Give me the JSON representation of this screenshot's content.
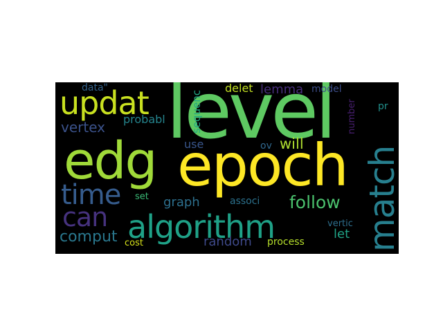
{
  "wordcloud": {
    "words": [
      {
        "text": "level",
        "color": "#5ec962",
        "orientation": "horizontal"
      },
      {
        "text": "epoch",
        "color": "#fde725",
        "orientation": "horizontal"
      },
      {
        "text": "edg",
        "color": "#a0da39",
        "orientation": "horizontal"
      },
      {
        "text": "algorithm",
        "color": "#1fa187",
        "orientation": "horizontal"
      },
      {
        "text": "match",
        "color": "#277f8e",
        "orientation": "vertical"
      },
      {
        "text": "updat",
        "color": "#c8e020",
        "orientation": "horizontal"
      },
      {
        "text": "time",
        "color": "#365c8d",
        "orientation": "horizontal"
      },
      {
        "text": "can",
        "color": "#46327e",
        "orientation": "horizontal"
      },
      {
        "text": "follow",
        "color": "#4ac16d",
        "orientation": "horizontal"
      },
      {
        "text": "comput",
        "color": "#2a788e",
        "orientation": "horizontal"
      },
      {
        "text": "vertex",
        "color": "#3b528b",
        "orientation": "horizontal"
      },
      {
        "text": "random",
        "color": "#3e4989",
        "orientation": "horizontal"
      },
      {
        "text": "will",
        "color": "#addc30",
        "orientation": "horizontal"
      },
      {
        "text": "lemma",
        "color": "#472d7b",
        "orientation": "horizontal"
      },
      {
        "text": "delet",
        "color": "#c2df23",
        "orientation": "horizontal"
      },
      {
        "text": "graph",
        "color": "#2d708e",
        "orientation": "horizontal"
      },
      {
        "text": "use",
        "color": "#39568c",
        "orientation": "horizontal"
      },
      {
        "text": "let",
        "color": "#20a386",
        "orientation": "horizontal"
      },
      {
        "text": "probabl",
        "color": "#25858e",
        "orientation": "horizontal"
      },
      {
        "text": "sequenc",
        "color": "#22a884",
        "orientation": "vertical"
      },
      {
        "text": "number",
        "color": "#481f70",
        "orientation": "vertical"
      },
      {
        "text": "model",
        "color": "#3d4e8a",
        "orientation": "horizontal"
      },
      {
        "text": "data\"",
        "color": "#33638d",
        "orientation": "horizontal"
      },
      {
        "text": "pr",
        "color": "#21918c",
        "orientation": "horizontal"
      },
      {
        "text": "ov",
        "color": "#31688e",
        "orientation": "horizontal"
      },
      {
        "text": "associ",
        "color": "#2c728e",
        "orientation": "horizontal"
      },
      {
        "text": "set",
        "color": "#3aba76",
        "orientation": "horizontal"
      },
      {
        "text": "vertic",
        "color": "#2e6f8e",
        "orientation": "horizontal"
      },
      {
        "text": "cost",
        "color": "#d8e219",
        "orientation": "horizontal"
      },
      {
        "text": "process",
        "color": "#b5de2b",
        "orientation": "horizontal"
      }
    ]
  }
}
